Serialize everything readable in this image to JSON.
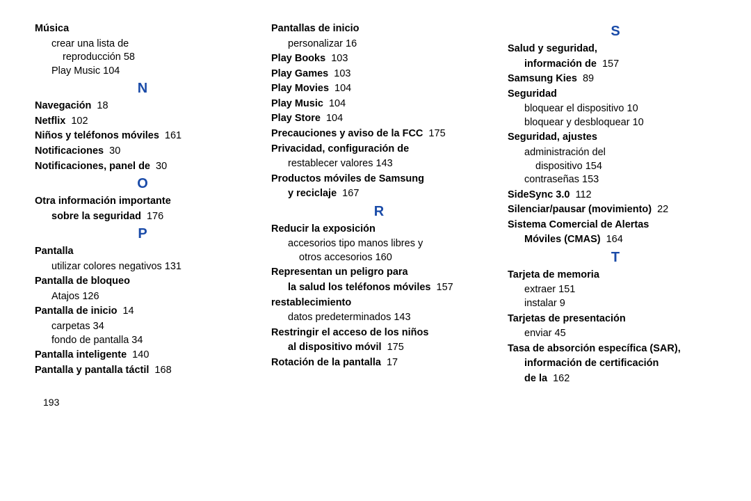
{
  "letter_header_color": "#1a4ba8",
  "page_number": "193",
  "columns": [
    {
      "items": [
        {
          "type": "entry",
          "term": "Música"
        },
        {
          "type": "sub",
          "text": "crear una lista de"
        },
        {
          "type": "sub-cont",
          "text": "reproducción 58"
        },
        {
          "type": "sub",
          "text": "Play Music 104"
        },
        {
          "type": "letter",
          "text": "N"
        },
        {
          "type": "entry",
          "term": "Navegación",
          "page": "18"
        },
        {
          "type": "entry",
          "term": "Netflix",
          "page": "102"
        },
        {
          "type": "entry",
          "term": "Niños y teléfonos móviles",
          "page": "161"
        },
        {
          "type": "entry",
          "term": "Notificaciones",
          "page": "30"
        },
        {
          "type": "entry",
          "term": "Notificaciones, panel de",
          "page": "30"
        },
        {
          "type": "letter",
          "text": "O"
        },
        {
          "type": "entry",
          "term": "Otra información importante"
        },
        {
          "type": "entry-cont",
          "term": "sobre la seguridad",
          "page": "176"
        },
        {
          "type": "letter",
          "text": "P"
        },
        {
          "type": "entry",
          "term": "Pantalla"
        },
        {
          "type": "sub",
          "text": "utilizar colores negativos 131"
        },
        {
          "type": "entry",
          "term": "Pantalla de bloqueo"
        },
        {
          "type": "sub",
          "text": "Atajos 126"
        },
        {
          "type": "entry",
          "term": "Pantalla de inicio",
          "page": "14"
        },
        {
          "type": "sub",
          "text": "carpetas 34"
        },
        {
          "type": "sub",
          "text": "fondo de pantalla 34"
        },
        {
          "type": "entry",
          "term": "Pantalla inteligente",
          "page": "140"
        },
        {
          "type": "entry",
          "term": "Pantalla y pantalla táctil",
          "page": "168"
        }
      ]
    },
    {
      "items": [
        {
          "type": "entry",
          "term": "Pantallas de inicio"
        },
        {
          "type": "sub",
          "text": "personalizar 16"
        },
        {
          "type": "entry",
          "term": "Play Books",
          "page": "103"
        },
        {
          "type": "entry",
          "term": "Play Games",
          "page": "103"
        },
        {
          "type": "entry",
          "term": "Play Movies",
          "page": "104"
        },
        {
          "type": "entry",
          "term": "Play Music",
          "page": "104"
        },
        {
          "type": "entry",
          "term": "Play Store",
          "page": "104"
        },
        {
          "type": "entry",
          "term": "Precauciones y aviso de la FCC",
          "page": "175"
        },
        {
          "type": "entry",
          "term": "Privacidad, configuración de"
        },
        {
          "type": "sub",
          "text": "restablecer valores 143"
        },
        {
          "type": "entry",
          "term": "Productos móviles de Samsung"
        },
        {
          "type": "entry-cont",
          "term": "y reciclaje",
          "page": "167"
        },
        {
          "type": "letter",
          "text": "R"
        },
        {
          "type": "entry",
          "term": "Reducir la exposición"
        },
        {
          "type": "sub",
          "text": "accesorios tipo manos libres y"
        },
        {
          "type": "sub-cont",
          "text": "otros accesorios 160"
        },
        {
          "type": "entry",
          "term": "Representan un peligro para"
        },
        {
          "type": "entry-cont",
          "term": "la salud los teléfonos móviles",
          "page": "157"
        },
        {
          "type": "entry",
          "term": "restablecimiento"
        },
        {
          "type": "sub",
          "text": "datos predeterminados 143"
        },
        {
          "type": "entry",
          "term": "Restringir el acceso de los niños"
        },
        {
          "type": "entry-cont",
          "term": "al dispositivo móvil",
          "page": "175"
        },
        {
          "type": "entry",
          "term": "Rotación de la pantalla",
          "page": "17"
        }
      ]
    },
    {
      "items": [
        {
          "type": "letter",
          "text": "S"
        },
        {
          "type": "entry",
          "term": "Salud y seguridad,"
        },
        {
          "type": "entry-cont",
          "term": "información de",
          "page": "157"
        },
        {
          "type": "entry",
          "term": "Samsung Kies",
          "page": "89"
        },
        {
          "type": "entry",
          "term": "Seguridad"
        },
        {
          "type": "sub",
          "text": "bloquear el dispositivo 10"
        },
        {
          "type": "sub",
          "text": "bloquear y desbloquear 10"
        },
        {
          "type": "entry",
          "term": "Seguridad, ajustes"
        },
        {
          "type": "sub",
          "text": "administración del"
        },
        {
          "type": "sub-cont",
          "text": "dispositivo 154"
        },
        {
          "type": "sub",
          "text": "contraseñas 153"
        },
        {
          "type": "entry",
          "term": "SideSync 3.0",
          "page": "112"
        },
        {
          "type": "entry",
          "term": "Silenciar/pausar (movimiento)",
          "page": "22"
        },
        {
          "type": "entry",
          "term": "Sistema Comercial de Alertas"
        },
        {
          "type": "entry-cont",
          "term": "Móviles (CMAS)",
          "page": "164"
        },
        {
          "type": "letter",
          "text": "T"
        },
        {
          "type": "entry",
          "term": "Tarjeta de memoria"
        },
        {
          "type": "sub",
          "text": "extraer 151"
        },
        {
          "type": "sub",
          "text": "instalar 9"
        },
        {
          "type": "entry",
          "term": "Tarjetas de presentación"
        },
        {
          "type": "sub",
          "text": "enviar 45"
        },
        {
          "type": "entry",
          "term": "Tasa de absorción específica (SAR),"
        },
        {
          "type": "entry-cont",
          "term": "información de certificación"
        },
        {
          "type": "entry-cont",
          "term": "de la",
          "page": "162"
        }
      ]
    }
  ]
}
